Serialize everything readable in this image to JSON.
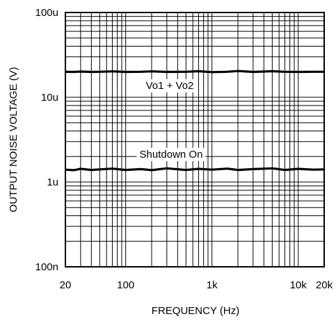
{
  "chart_data": {
    "type": "line",
    "xlabel": "FREQUENCY (Hz)",
    "ylabel": "OUTPUT NOISE VOLTAGE (V)",
    "xscale": "log",
    "yscale": "log",
    "xlim": [
      20,
      20000
    ],
    "ylim": [
      1e-07,
      0.0001
    ],
    "grid": true,
    "x_ticks": [
      {
        "value": 20,
        "label": "20"
      },
      {
        "value": 100,
        "label": "100"
      },
      {
        "value": 1000,
        "label": "1k"
      },
      {
        "value": 10000,
        "label": "10k"
      },
      {
        "value": 20000,
        "label": "20k"
      }
    ],
    "y_ticks": [
      {
        "value": 0.0001,
        "label": "100u"
      },
      {
        "value": 1e-05,
        "label": "10u"
      },
      {
        "value": 1e-06,
        "label": "1u"
      },
      {
        "value": 1e-07,
        "label": "100n"
      }
    ],
    "series": [
      {
        "name": "Vo1 + Vo2",
        "x": [
          20,
          25,
          30,
          40,
          50,
          70,
          100,
          150,
          200,
          300,
          500,
          700,
          1000,
          1500,
          2000,
          3000,
          5000,
          7000,
          10000,
          15000,
          20000
        ],
        "y": [
          2e-05,
          1.99e-05,
          2.01e-05,
          1.99e-05,
          2e-05,
          2.02e-05,
          1.99e-05,
          2e-05,
          2.02e-05,
          1.99e-05,
          2e-05,
          2.03e-05,
          1.98e-05,
          2e-05,
          2.04e-05,
          1.99e-05,
          2.03e-05,
          2e-05,
          1.99e-05,
          2e-05,
          2e-05
        ]
      },
      {
        "name": "Shutdown On",
        "x": [
          20,
          25,
          30,
          40,
          50,
          70,
          100,
          150,
          200,
          300,
          500,
          700,
          1000,
          1500,
          2000,
          3000,
          5000,
          7000,
          10000,
          15000,
          20000
        ],
        "y": [
          1.4e-06,
          1.38e-06,
          1.43e-06,
          1.39e-06,
          1.41e-06,
          1.44e-06,
          1.39e-06,
          1.42e-06,
          1.38e-06,
          1.45e-06,
          1.39e-06,
          1.43e-06,
          1.4e-06,
          1.44e-06,
          1.39e-06,
          1.42e-06,
          1.45e-06,
          1.39e-06,
          1.43e-06,
          1.4e-06,
          1.41e-06
        ]
      }
    ]
  }
}
